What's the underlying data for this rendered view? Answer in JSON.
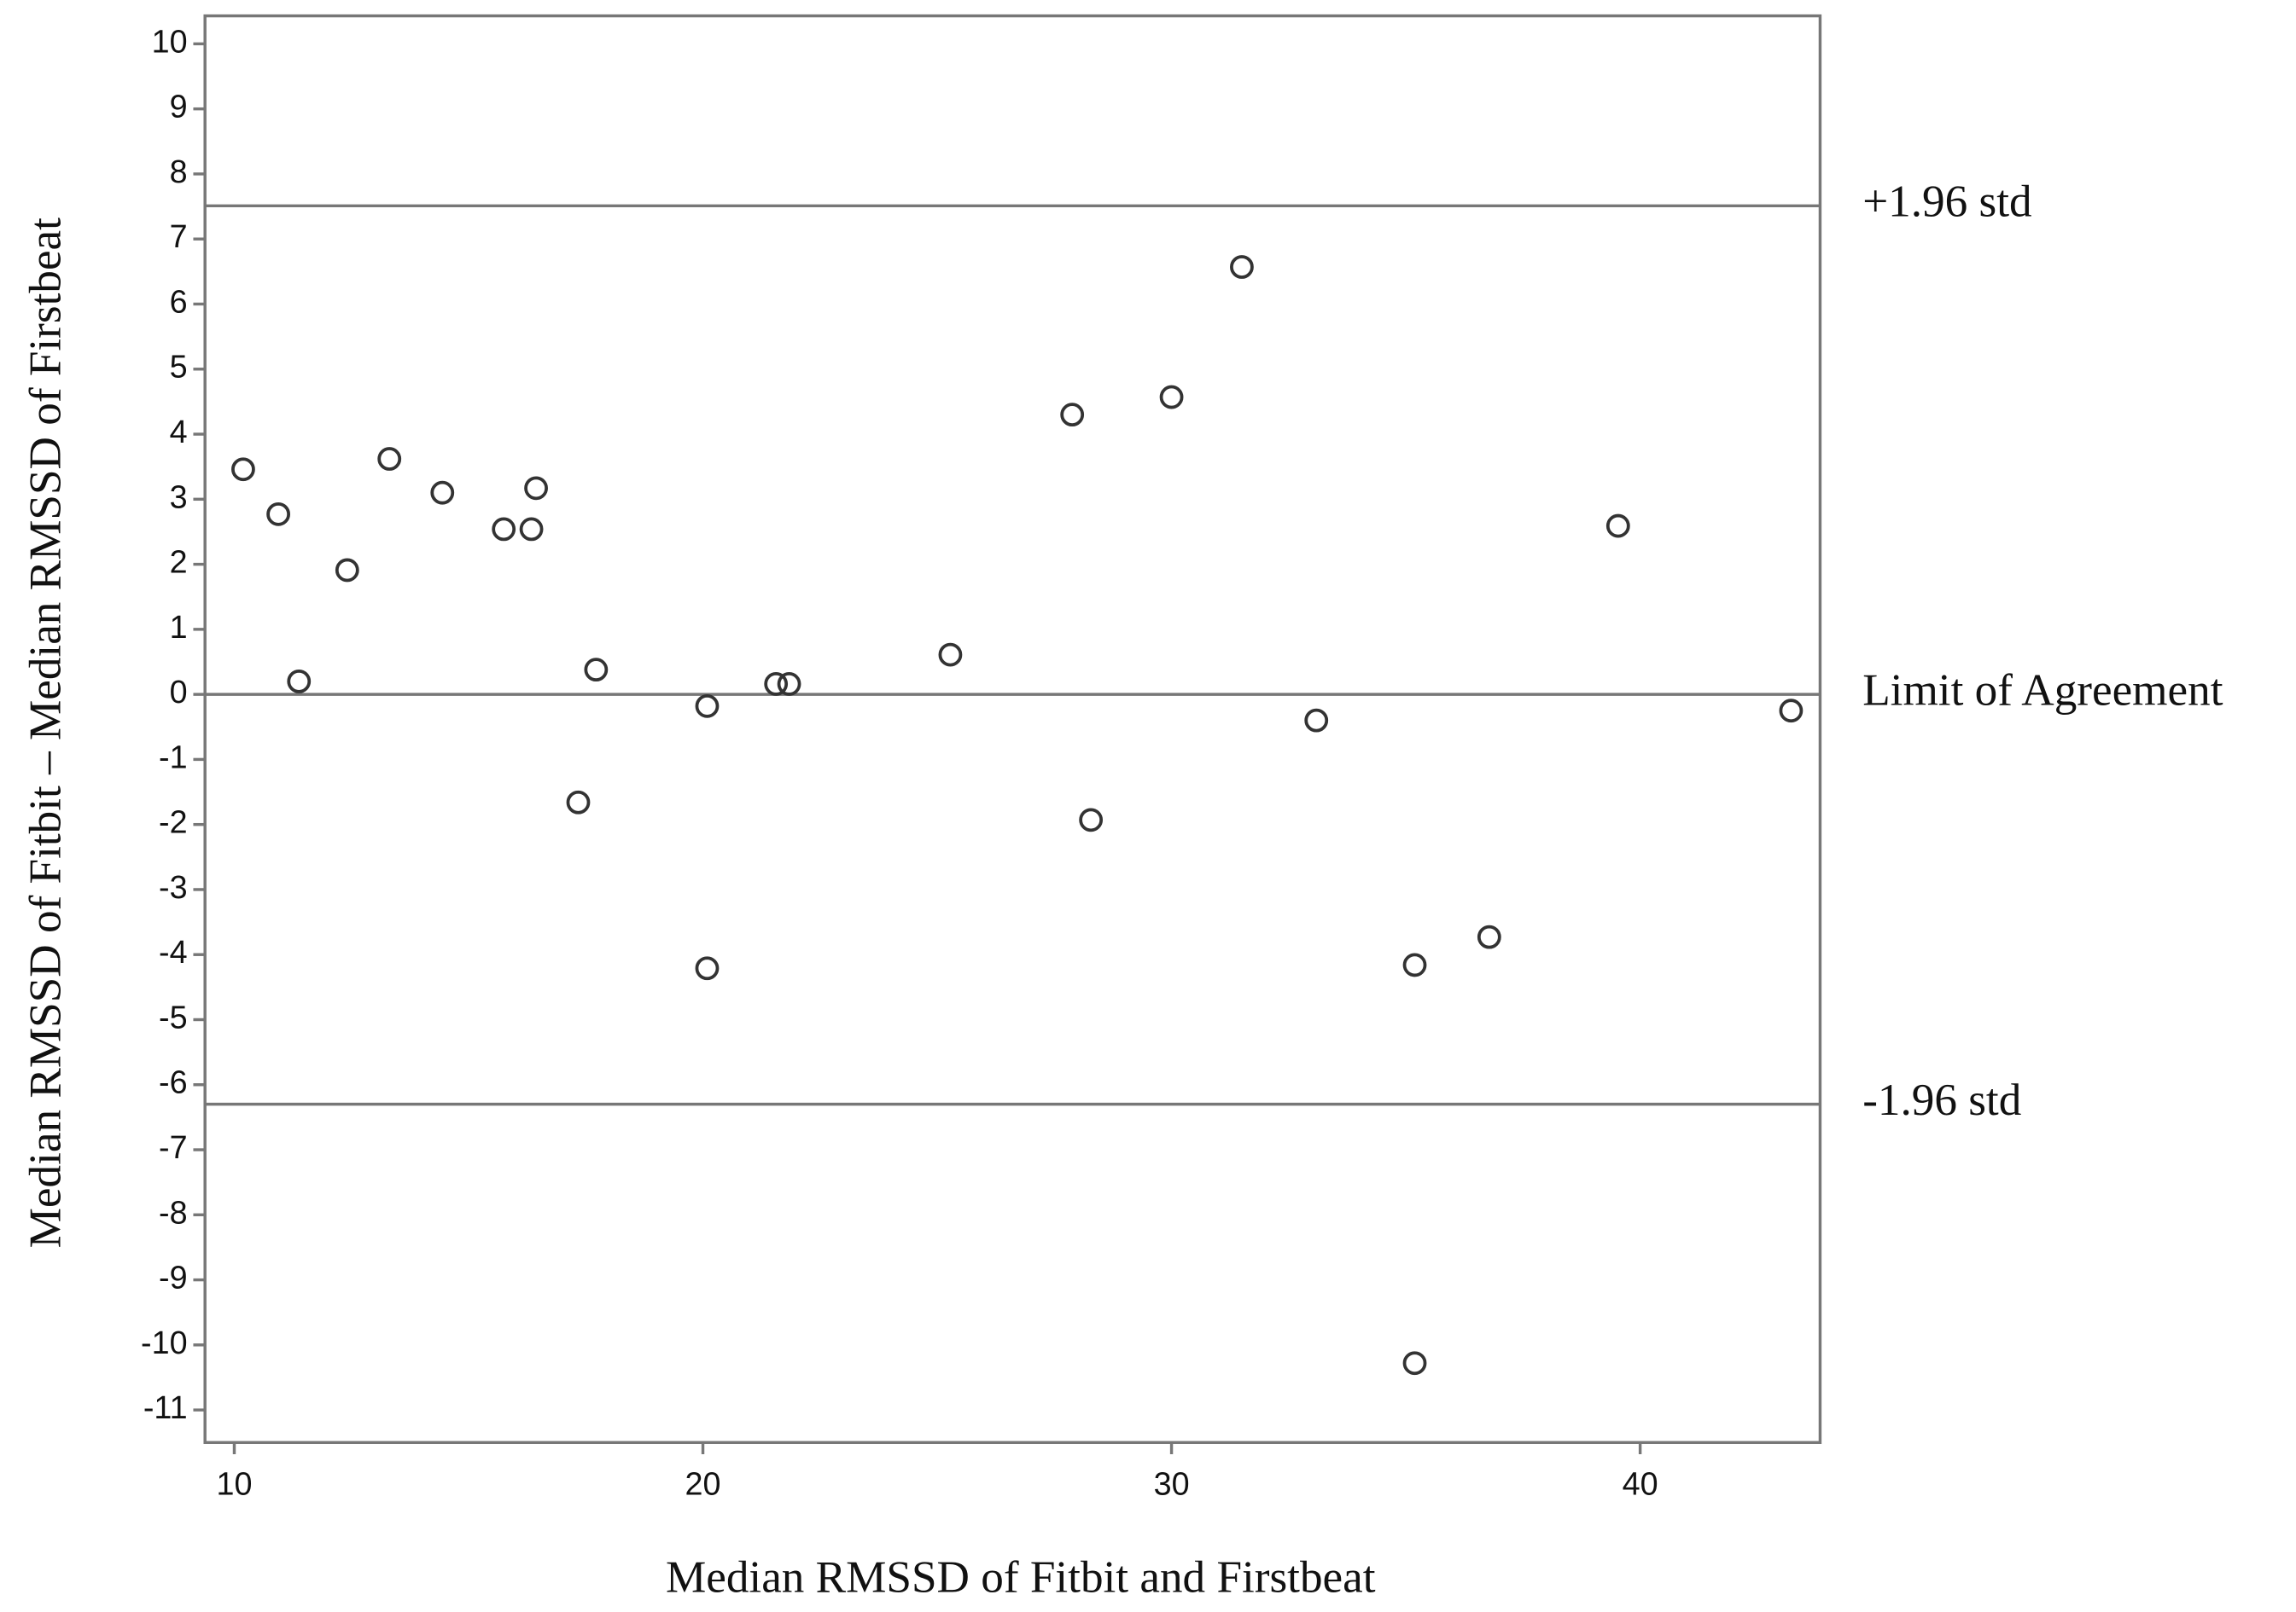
{
  "chart_data": {
    "type": "scatter",
    "x_label": "Median RMSSD of Fitbit and Firstbeat",
    "y_label": "Median RMSSD of Fitbit – Median RMSSD of Firstbeat",
    "x": [
      10.19,
      10.94,
      11.38,
      12.41,
      13.31,
      14.44,
      15.75,
      16.34,
      16.44,
      17.34,
      17.72,
      20.09,
      20.09,
      21.56,
      21.84,
      25.28,
      27.88,
      28.28,
      30.0,
      31.5,
      33.09,
      35.19,
      35.19,
      36.78,
      39.53,
      43.22
    ],
    "y": [
      3.46,
      2.77,
      0.2,
      1.91,
      3.62,
      3.1,
      2.54,
      2.54,
      3.17,
      -1.66,
      0.38,
      -0.18,
      -4.21,
      0.16,
      0.16,
      0.61,
      4.3,
      -1.93,
      4.57,
      6.57,
      -0.4,
      -4.16,
      -10.28,
      -3.73,
      2.59,
      -0.25
    ],
    "color": "#333333",
    "xlim": [
      9.375,
      43.84
    ],
    "ylim": [
      -11.5,
      10.43
    ],
    "xticks": [
      10,
      20,
      30,
      40
    ],
    "yticks": [
      10,
      9,
      8,
      7,
      6,
      5,
      4,
      3,
      2,
      1,
      0,
      -1,
      -2,
      -3,
      -4,
      -5,
      -6,
      -7,
      -8,
      -9,
      -10,
      -11
    ],
    "reference_lines": [
      {
        "value": 7.51,
        "label": "+1.96 std"
      },
      {
        "value": 0,
        "label": "Limit of Agreement"
      },
      {
        "value": -6.3,
        "label": "-1.96 std"
      }
    ]
  }
}
